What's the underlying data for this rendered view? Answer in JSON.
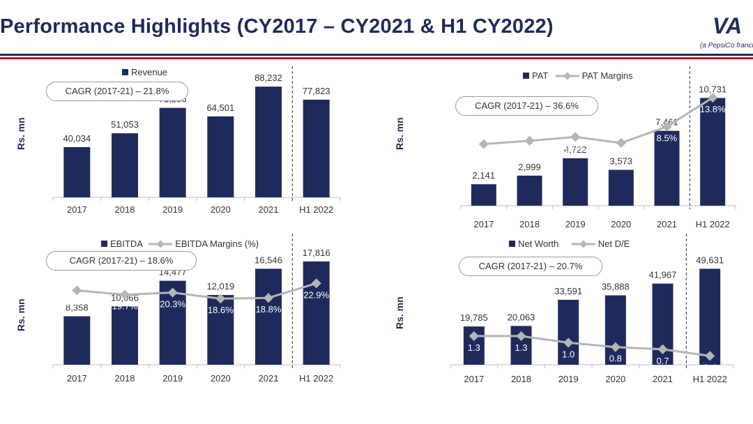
{
  "page": {
    "title": "Performance Highlights (CY2017 – CY2021 & H1 CY2022)",
    "tagline": "(a PepsiCo franch",
    "logo_label": "VA",
    "colors": {
      "bar": "#1f2a5c",
      "line": "#b5b5b5",
      "accent_red": "#c8102e",
      "navy": "#1f2a5c"
    }
  },
  "chart_data": [
    {
      "id": "revenue",
      "type": "bar",
      "ylabel": "Rs. mn",
      "cagr_label": "CAGR (2017-21) – 21.8%",
      "categories": [
        "2017",
        "2018",
        "2019",
        "2020",
        "2021",
        "H1 2022"
      ],
      "series": [
        {
          "name": "Revenue",
          "kind": "bar",
          "values": [
            40034,
            51053,
            71296,
            64501,
            88232,
            77823
          ],
          "labels": [
            "40,034",
            "51,053",
            "71,296",
            "64,501",
            "88,232",
            "77,823"
          ]
        }
      ],
      "ylim": [
        0,
        100000
      ],
      "divider_before": "H1 2022"
    },
    {
      "id": "pat",
      "type": "bar",
      "ylabel": "Rs. mn",
      "cagr_label": "CAGR (2017-21) – 36.6%",
      "categories": [
        "2017",
        "2018",
        "2019",
        "2020",
        "2021",
        "H1 2022"
      ],
      "series": [
        {
          "name": "PAT",
          "kind": "bar",
          "values": [
            2141,
            2999,
            4722,
            3573,
            7461,
            10731
          ],
          "labels": [
            "2,141",
            "2,999",
            "4,722",
            "3,573",
            "7,461",
            "10,731"
          ]
        },
        {
          "name": "PAT Margins",
          "kind": "line",
          "values": [
            5.3,
            5.9,
            6.6,
            5.5,
            8.5,
            13.8
          ],
          "labels": [
            "5.3%",
            "5.9%",
            "6.6%",
            "5.5%",
            "8.5%",
            "13.8%"
          ]
        }
      ],
      "ylim": [
        0,
        12500
      ],
      "line_ylim": [
        -6,
        17
      ],
      "divider_before": "H1 2022"
    },
    {
      "id": "ebitda",
      "type": "bar",
      "ylabel": "Rs. mn",
      "cagr_label": "CAGR (2017-21) – 18.6%",
      "categories": [
        "2017",
        "2018",
        "2019",
        "2020",
        "2021",
        "H1 2022"
      ],
      "series": [
        {
          "name": "EBITDA",
          "kind": "bar",
          "values": [
            8358,
            10066,
            14477,
            12019,
            16546,
            17816
          ],
          "labels": [
            "8,358",
            "10,066",
            "14,477",
            "12,019",
            "16,546",
            "17,816"
          ]
        },
        {
          "name": "EBITDA Margins (%)",
          "kind": "line",
          "values": [
            20.9,
            19.7,
            20.3,
            18.6,
            18.8,
            22.9
          ],
          "labels": [
            "20.9%",
            "19.7%",
            "20.3%",
            "18.6%",
            "18.8%",
            "22.9%"
          ]
        }
      ],
      "ylim": [
        0,
        19000
      ],
      "line_ylim": [
        0,
        31
      ],
      "divider_before": "H1 2022"
    },
    {
      "id": "networth",
      "type": "bar",
      "ylabel": "Rs. mn",
      "cagr_label": "CAGR (2017-21) – 20.7%",
      "categories": [
        "2017",
        "2018",
        "2019",
        "2020",
        "2021",
        "H1 2022"
      ],
      "series": [
        {
          "name": "Net Worth",
          "kind": "bar",
          "values": [
            19785,
            20063,
            33591,
            35888,
            41967,
            49631
          ],
          "labels": [
            "19,785",
            "20,063",
            "33,591",
            "35,888",
            "41,967",
            "49,631"
          ]
        },
        {
          "name": "Net D/E",
          "kind": "line",
          "values": [
            1.3,
            1.3,
            1.0,
            0.8,
            0.7,
            0.4
          ],
          "labels": [
            "1.3",
            "1.3",
            "1.0",
            "0.8",
            "0.7",
            "0.4"
          ]
        }
      ],
      "ylim": [
        0,
        57000
      ],
      "line_ylim": [
        0,
        5
      ],
      "divider_before": "H1 2022"
    }
  ]
}
